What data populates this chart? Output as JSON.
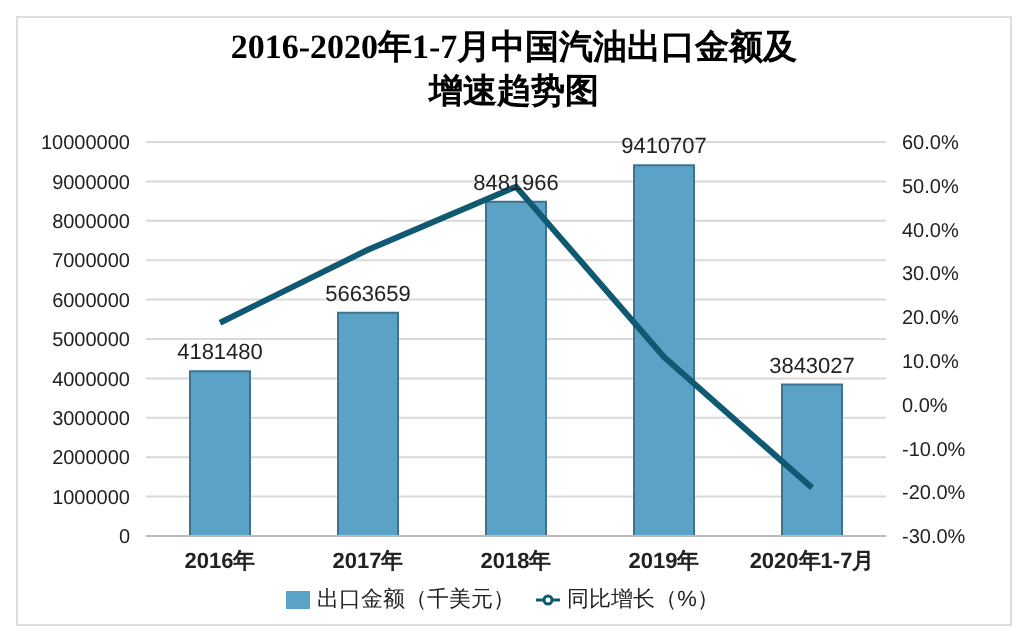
{
  "chart_data": {
    "type": "bar",
    "title": "2016-2020年1-7月中国汽油出口金额及增速趋势图",
    "categories": [
      "2016年",
      "2017年",
      "2018年",
      "2019年",
      "2020年1-7月"
    ],
    "series": [
      {
        "name": "出口金额（千美元）",
        "color": "#5ba3c6",
        "values": [
          4181480,
          5663659,
          8481966,
          9410707,
          3843027
        ],
        "value_labels": [
          "4181480",
          "5663659",
          "8481966",
          "9410707",
          "3843027"
        ]
      },
      {
        "name": "同比增长（%）",
        "type": "line",
        "axis": "y2",
        "color": "#0f5a72",
        "values": [
          18.7,
          35.4,
          49.8,
          10.9,
          -19
        ]
      }
    ],
    "ylim": [
      0,
      10000000
    ],
    "yticks": [
      0,
      1000000,
      2000000,
      3000000,
      4000000,
      5000000,
      6000000,
      7000000,
      8000000,
      9000000,
      10000000
    ],
    "y2lim": [
      -30,
      60
    ],
    "y2ticks": [
      {
        "value": -30,
        "label": "-30.0%"
      },
      {
        "value": -20,
        "label": "-20.0%"
      },
      {
        "value": -10,
        "label": "-10.0%"
      },
      {
        "value": 0,
        "label": "0.0%"
      },
      {
        "value": 10,
        "label": "10.0%"
      },
      {
        "value": 20,
        "label": "20.0%"
      },
      {
        "value": 30,
        "label": "30.0%"
      },
      {
        "value": 40,
        "label": "40.0%"
      },
      {
        "value": 50,
        "label": "50.0%"
      },
      {
        "value": 60,
        "label": "60.0%"
      }
    ],
    "grid": "y",
    "legend": "bottom",
    "marker": "none",
    "line_style": "solid"
  }
}
